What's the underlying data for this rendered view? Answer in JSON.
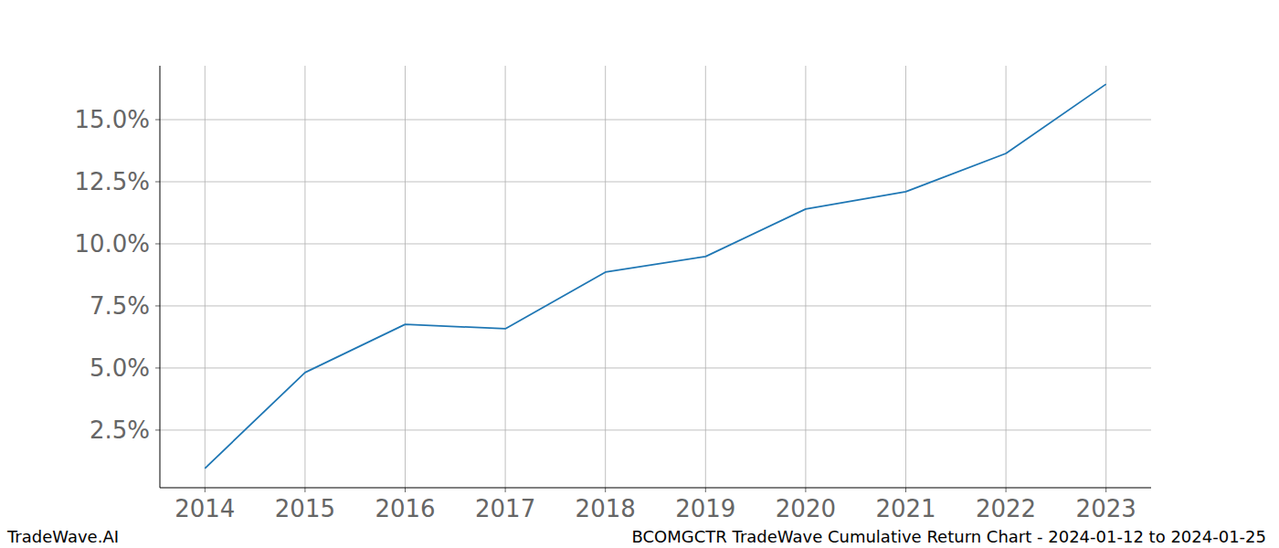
{
  "chart_data": {
    "type": "line",
    "title": "BCOMGCTR TradeWave Cumulative Return Chart - 2024-01-12 to 2024-01-25",
    "source": "TradeWave.AI",
    "x": [
      2014,
      2015,
      2016,
      2017,
      2018,
      2019,
      2020,
      2021,
      2022,
      2023
    ],
    "series": [
      {
        "name": "BCOMGCTR",
        "color": "#1f77b4",
        "values": [
          0.96,
          4.82,
          6.76,
          6.58,
          8.86,
          9.49,
          11.4,
          12.1,
          13.64,
          16.43
        ]
      }
    ],
    "xlim": [
      2013.55,
      2023.45
    ],
    "xticks": [
      2014,
      2015,
      2016,
      2017,
      2018,
      2019,
      2020,
      2021,
      2022,
      2023
    ],
    "ylim": [
      0.18,
      17.17
    ],
    "yticks": [
      {
        "value": 2.5,
        "label": "2.5%"
      },
      {
        "value": 5,
        "label": "5.0%"
      },
      {
        "value": 7.5,
        "label": "7.5%"
      },
      {
        "value": 10,
        "label": "10.0%"
      },
      {
        "value": 12.5,
        "label": "12.5%"
      },
      {
        "value": 15,
        "label": "15.0%"
      }
    ],
    "grid": true
  }
}
